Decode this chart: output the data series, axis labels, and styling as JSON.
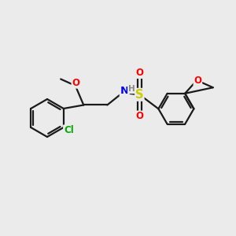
{
  "bg_color": "#ebebeb",
  "bond_color": "#1a1a1a",
  "bond_width": 1.6,
  "atom_colors": {
    "O": "#ff0000",
    "N": "#0000ee",
    "S": "#cccc00",
    "Cl": "#00aa00",
    "H": "#888888",
    "C": "#1a1a1a"
  },
  "font_size": 8.5
}
